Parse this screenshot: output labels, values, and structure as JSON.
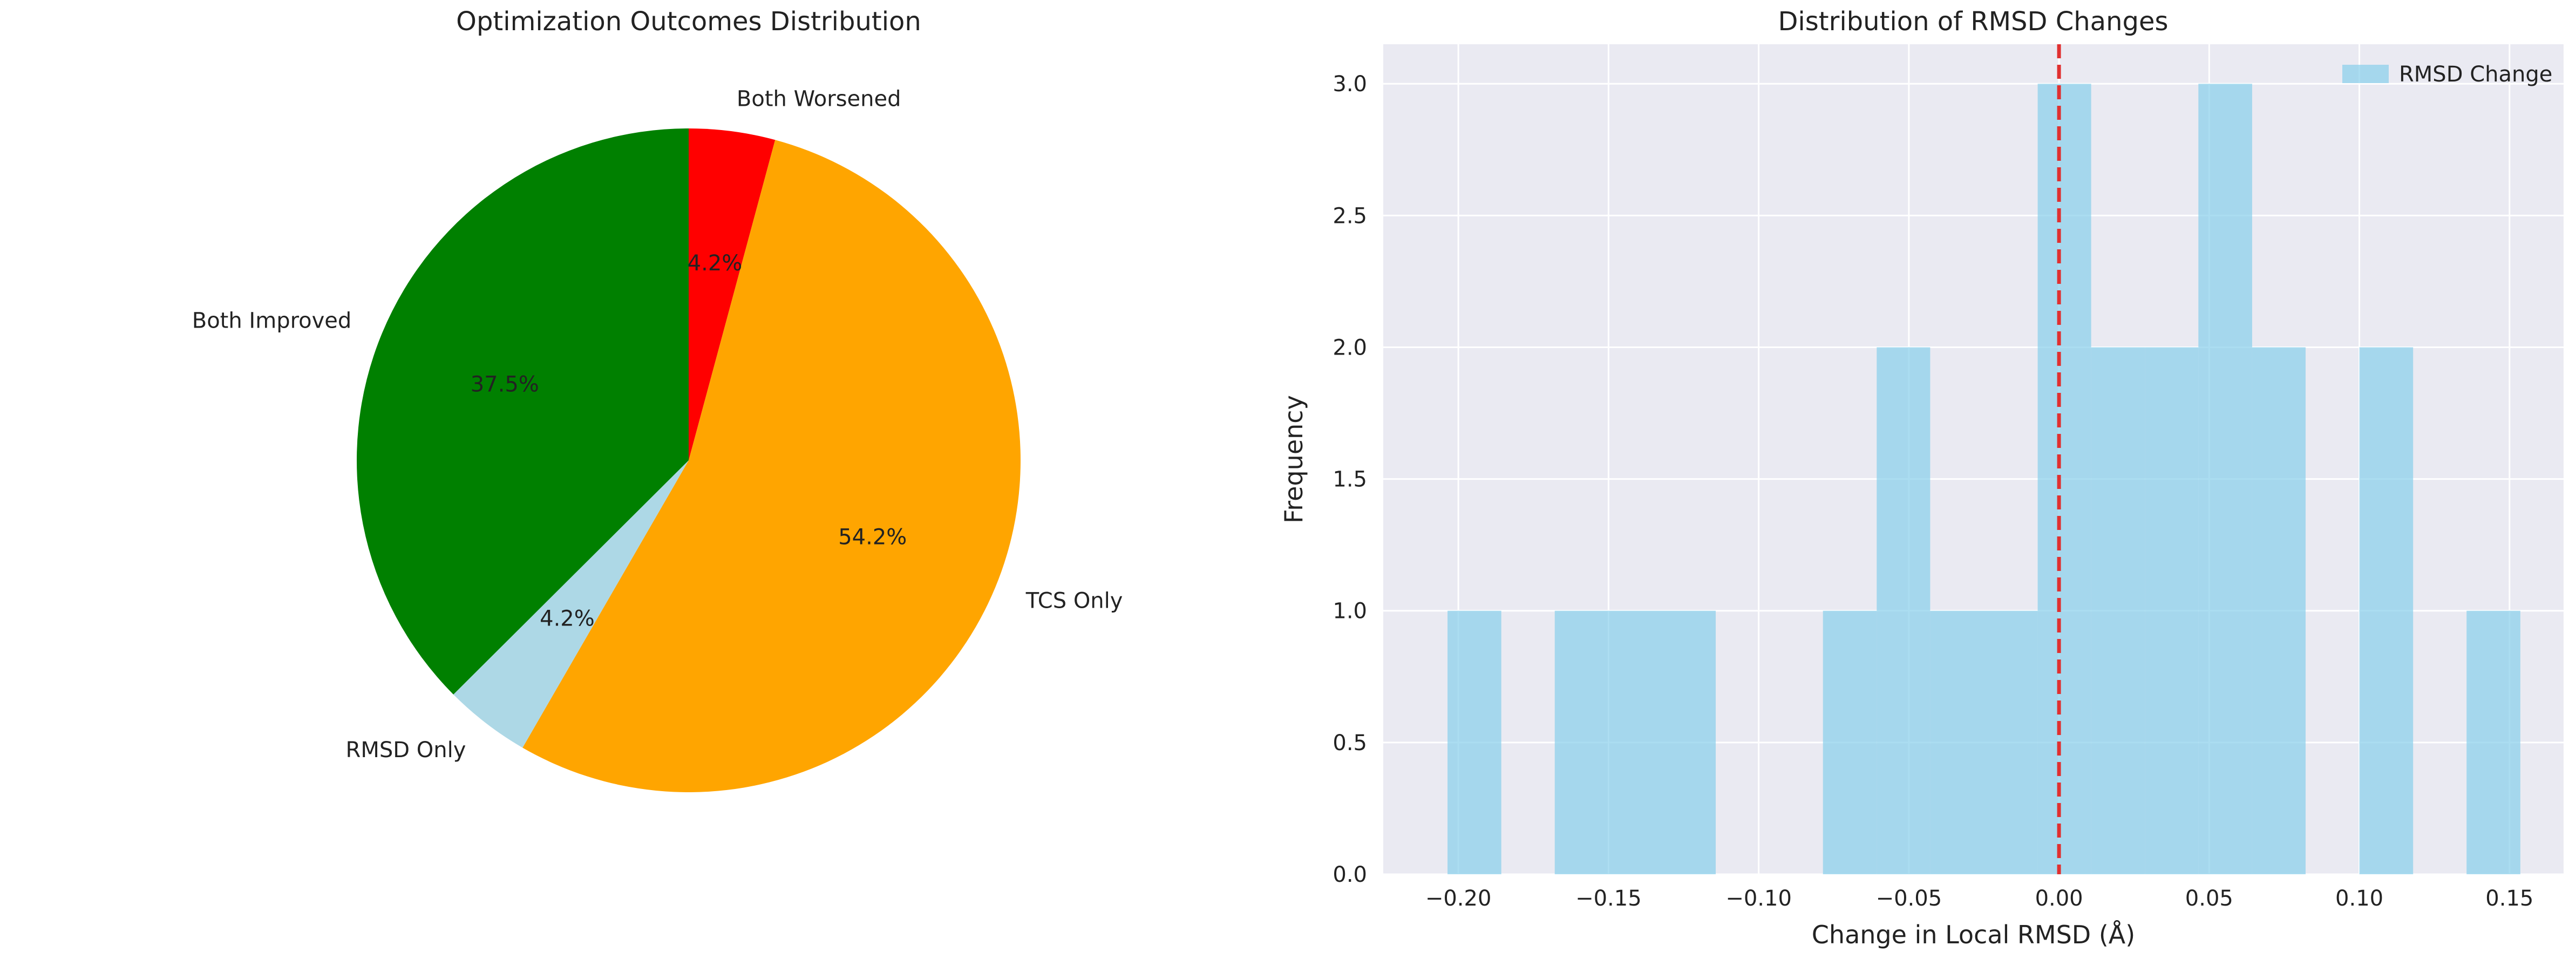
{
  "chart_data": [
    {
      "type": "pie",
      "title": "Optimization Outcomes Distribution",
      "slices": [
        {
          "label": "Both Worsened",
          "value": 4.2,
          "pct_label": "4.2%",
          "color": "#ff0000"
        },
        {
          "label": "TCS Only",
          "value": 54.2,
          "pct_label": "54.2%",
          "color": "#ffa500"
        },
        {
          "label": "RMSD Only",
          "value": 4.2,
          "pct_label": "4.2%",
          "color": "#add8e6"
        },
        {
          "label": "Both Improved",
          "value": 37.5,
          "pct_label": "37.5%",
          "color": "#008000"
        }
      ],
      "start_angle_deg": 90,
      "direction": "clockwise"
    },
    {
      "type": "bar",
      "subtype": "histogram",
      "title": "Distribution of RMSD Changes",
      "xlabel": "Change in Local RMSD (Å)",
      "ylabel": "Frequency",
      "xlim": [
        -0.225,
        0.168
      ],
      "ylim": [
        0,
        3.15
      ],
      "grid": true,
      "legend": {
        "position": "top-right",
        "entries": [
          {
            "label": "RMSD Change",
            "color": "#87ceeb"
          }
        ]
      },
      "bar_color": "#87ceeb",
      "bins": [
        {
          "start": -0.2036,
          "end": -0.1857,
          "count": 1
        },
        {
          "start": -0.1857,
          "end": -0.1679,
          "count": 0
        },
        {
          "start": -0.1679,
          "end": -0.15,
          "count": 1
        },
        {
          "start": -0.15,
          "end": -0.1321,
          "count": 1
        },
        {
          "start": -0.1321,
          "end": -0.1143,
          "count": 1
        },
        {
          "start": -0.1143,
          "end": -0.0964,
          "count": 0
        },
        {
          "start": -0.0964,
          "end": -0.0786,
          "count": 0
        },
        {
          "start": -0.0786,
          "end": -0.0607,
          "count": 1
        },
        {
          "start": -0.0607,
          "end": -0.0429,
          "count": 2
        },
        {
          "start": -0.0429,
          "end": -0.025,
          "count": 1
        },
        {
          "start": -0.025,
          "end": -0.0071,
          "count": 1
        },
        {
          "start": -0.0071,
          "end": 0.0107,
          "count": 3
        },
        {
          "start": 0.0107,
          "end": 0.0286,
          "count": 2
        },
        {
          "start": 0.0286,
          "end": 0.0464,
          "count": 2
        },
        {
          "start": 0.0464,
          "end": 0.0643,
          "count": 3
        },
        {
          "start": 0.0643,
          "end": 0.0821,
          "count": 2
        },
        {
          "start": 0.0821,
          "end": 0.1,
          "count": 0
        },
        {
          "start": 0.1,
          "end": 0.1179,
          "count": 2
        },
        {
          "start": 0.1179,
          "end": 0.1357,
          "count": 0
        },
        {
          "start": 0.1357,
          "end": 0.1536,
          "count": 1
        }
      ],
      "x_ticks": [
        {
          "value": -0.2,
          "label": "−0.20"
        },
        {
          "value": -0.15,
          "label": "−0.15"
        },
        {
          "value": -0.1,
          "label": "−0.10"
        },
        {
          "value": -0.05,
          "label": "−0.05"
        },
        {
          "value": 0.0,
          "label": "0.00"
        },
        {
          "value": 0.05,
          "label": "0.05"
        },
        {
          "value": 0.1,
          "label": "0.10"
        },
        {
          "value": 0.15,
          "label": "0.15"
        }
      ],
      "y_ticks": [
        {
          "value": 0.0,
          "label": "0.0"
        },
        {
          "value": 0.5,
          "label": "0.5"
        },
        {
          "value": 1.0,
          "label": "1.0"
        },
        {
          "value": 1.5,
          "label": "1.5"
        },
        {
          "value": 2.0,
          "label": "2.0"
        },
        {
          "value": 2.5,
          "label": "2.5"
        },
        {
          "value": 3.0,
          "label": "3.0"
        }
      ],
      "reference_line": {
        "x": 0.0,
        "color": "#e03030",
        "style": "dashed"
      }
    }
  ]
}
